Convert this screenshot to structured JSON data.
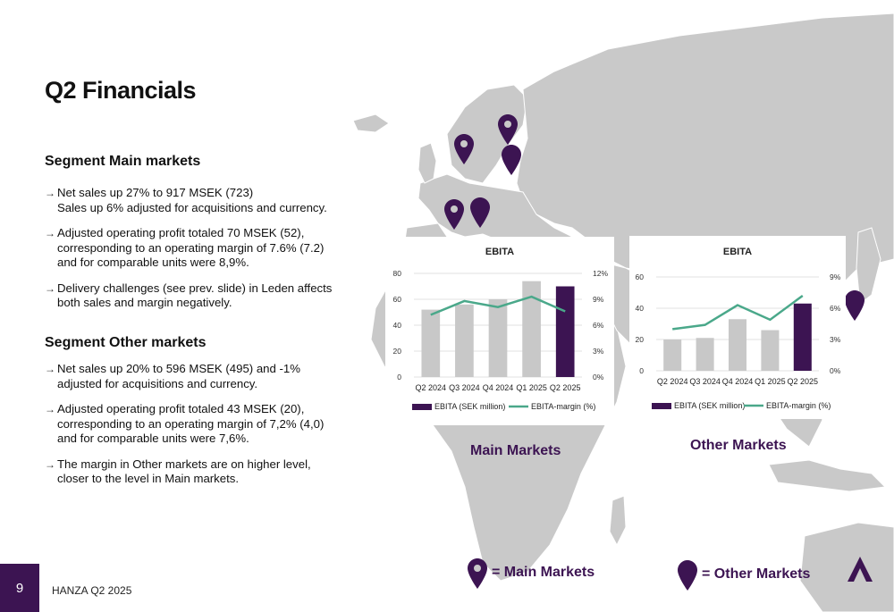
{
  "title": "Q2 Financials",
  "segments": [
    {
      "heading": "Segment Main markets",
      "bullets": [
        "Net sales up 27% to 917 MSEK (723)\nSales up 6% adjusted for acquisitions and currency.",
        "Adjusted operating profit totaled 70 MSEK (52), corresponding to an operating margin of 7.6% (7.2) and for comparable units were 8,9%.",
        "Delivery challenges (see prev. slide) in Leden affects both sales and margin negatively."
      ]
    },
    {
      "heading": "Segment Other markets",
      "bullets": [
        "Net sales up 20% to 596 MSEK (495) and -1% adjusted for acquisitions and currency.",
        "Adjusted operating profit totaled 43 MSEK (20), corresponding to an operating margin of 7,2% (4,0) and for comparable units were 7,6%.",
        "The margin in Other markets are on higher level, closer to the level in Main markets."
      ]
    }
  ],
  "regions": {
    "main_label": "Main Markets",
    "other_label": "Other Markets"
  },
  "legend": {
    "main": "= Main Markets",
    "other": "= Other Markets"
  },
  "footer": {
    "page_number": "9",
    "text": "HANZA Q2 2025"
  },
  "colors": {
    "brand": "#3c1452",
    "bar_gray": "#c8c8c8",
    "line_green": "#4aa88a",
    "map_gray": "#c9c9c9"
  },
  "chart_data": [
    {
      "type": "bar",
      "title": "EBITA",
      "categories": [
        "Q2 2024",
        "Q3 2024",
        "Q4 2024",
        "Q1 2025",
        "Q2 2025"
      ],
      "series": [
        {
          "name": "EBITA (SEK million)",
          "type": "bar",
          "axis": "left",
          "values": [
            52,
            56,
            60,
            74,
            70
          ]
        },
        {
          "name": "EBITA-margin (%)",
          "type": "line",
          "axis": "right",
          "values": [
            7.2,
            8.8,
            8.1,
            9.3,
            7.6
          ]
        }
      ],
      "ylim": [
        0,
        80
      ],
      "yticks": [
        "0",
        "20",
        "40",
        "60",
        "80"
      ],
      "y2lim": [
        0,
        12
      ],
      "y2ticks": [
        "0%",
        "3%",
        "6%",
        "9%",
        "12%"
      ],
      "highlight_last": true,
      "legend_position": "bottom"
    },
    {
      "type": "bar",
      "title": "EBITA",
      "categories": [
        "Q2 2024",
        "Q3 2024",
        "Q4 2024",
        "Q1 2025",
        "Q2 2025"
      ],
      "series": [
        {
          "name": "EBITA (SEK million)",
          "type": "bar",
          "axis": "left",
          "values": [
            20,
            21,
            33,
            26,
            43
          ]
        },
        {
          "name": "EBITA-margin (%)",
          "type": "line",
          "axis": "right",
          "values": [
            4.0,
            4.4,
            6.3,
            4.9,
            7.2
          ]
        }
      ],
      "ylim": [
        0,
        60
      ],
      "yticks": [
        "0",
        "20",
        "40",
        "60"
      ],
      "y2lim": [
        0,
        9
      ],
      "y2ticks": [
        "0%",
        "3%",
        "6%",
        "9%"
      ],
      "highlight_last": true,
      "legend_position": "bottom"
    }
  ]
}
